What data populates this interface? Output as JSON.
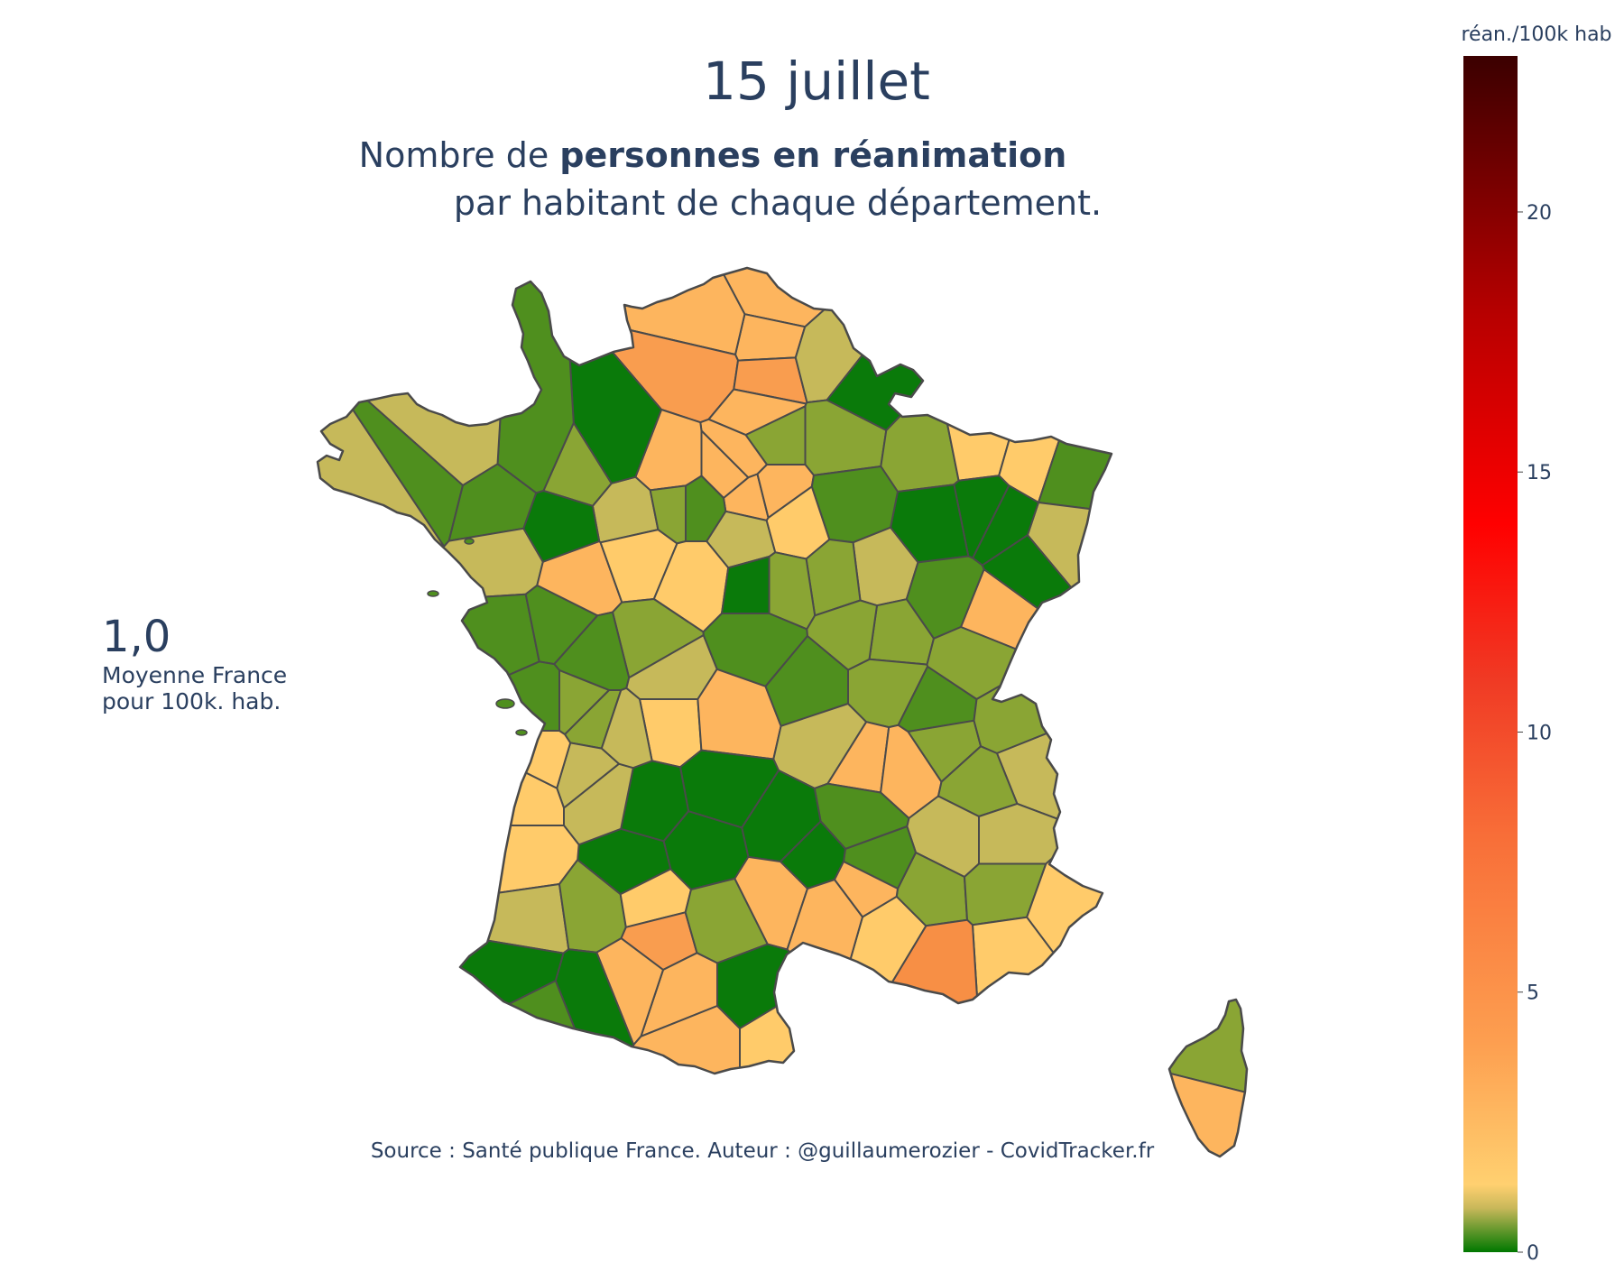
{
  "header": {
    "date_title": "15 juillet",
    "subtitle_part1": "Nombre de ",
    "subtitle_bold": "personnes en réanimation",
    "subtitle_line2": "par habitant de chaque département."
  },
  "summary": {
    "value": "1,0",
    "line1": "Moyenne France",
    "line2": "pour 100k. hab."
  },
  "source": "Source : Santé publique France. Auteur : @guillaumerozier - CovidTracker.fr",
  "colorbar": {
    "title": "réan./100k hab",
    "ticks": [
      "0",
      "5",
      "10",
      "15",
      "20"
    ],
    "min": 0,
    "max": 23,
    "stops": [
      {
        "value": 0,
        "color": "#007800"
      },
      {
        "value": 0.85,
        "color": "#c9b85a"
      },
      {
        "value": 1.3,
        "color": "#ffd070"
      },
      {
        "value": 4,
        "color": "#fd9f50"
      },
      {
        "value": 8,
        "color": "#f86e38"
      },
      {
        "value": 11,
        "color": "#f03a24"
      },
      {
        "value": 14,
        "color": "#ff0000"
      },
      {
        "value": 18,
        "color": "#b80000"
      },
      {
        "value": 23,
        "color": "#3b0000"
      }
    ]
  },
  "chart_data": {
    "type": "choropleth",
    "region": "France métropolitaine (départements)",
    "value_unit": "réan./100k hab",
    "range": [
      0,
      23
    ],
    "national_average": 1.0,
    "colors": {
      "dark_green": "#0a7a0a",
      "green": "#4f8f1e",
      "olive": "#8aa534",
      "khaki": "#c6b95a",
      "yellow": "#ffcb6a",
      "light_orange": "#fdb55e",
      "orange": "#f99d4f",
      "dark_orange": "#f78f45",
      "border": "#4a4a4a"
    }
  }
}
